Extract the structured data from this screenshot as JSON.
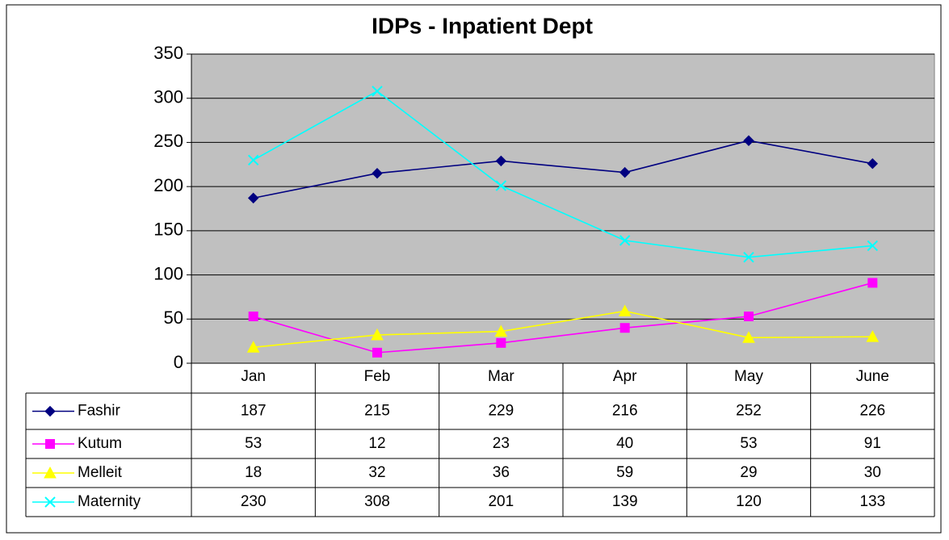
{
  "chart_data": {
    "type": "line",
    "title": "IDPs - Inpatient Dept",
    "categories": [
      "Jan",
      "Feb",
      "Mar",
      "Apr",
      "May",
      "June"
    ],
    "series": [
      {
        "name": "Fashir",
        "color": "#000080",
        "marker": "diamond",
        "values": [
          187,
          215,
          229,
          216,
          252,
          226
        ]
      },
      {
        "name": "Kutum",
        "color": "#ff00ff",
        "marker": "square",
        "values": [
          53,
          12,
          23,
          40,
          53,
          91
        ]
      },
      {
        "name": "Melleit",
        "color": "#ffff00",
        "marker": "triangle",
        "values": [
          18,
          32,
          36,
          59,
          29,
          30
        ]
      },
      {
        "name": "Maternity",
        "color": "#00ffff",
        "marker": "x",
        "values": [
          230,
          308,
          201,
          139,
          120,
          133
        ]
      }
    ],
    "ylim": [
      0,
      350
    ],
    "yticks": [
      0,
      50,
      100,
      150,
      200,
      250,
      300,
      350
    ],
    "grid": true,
    "data_table": true
  }
}
